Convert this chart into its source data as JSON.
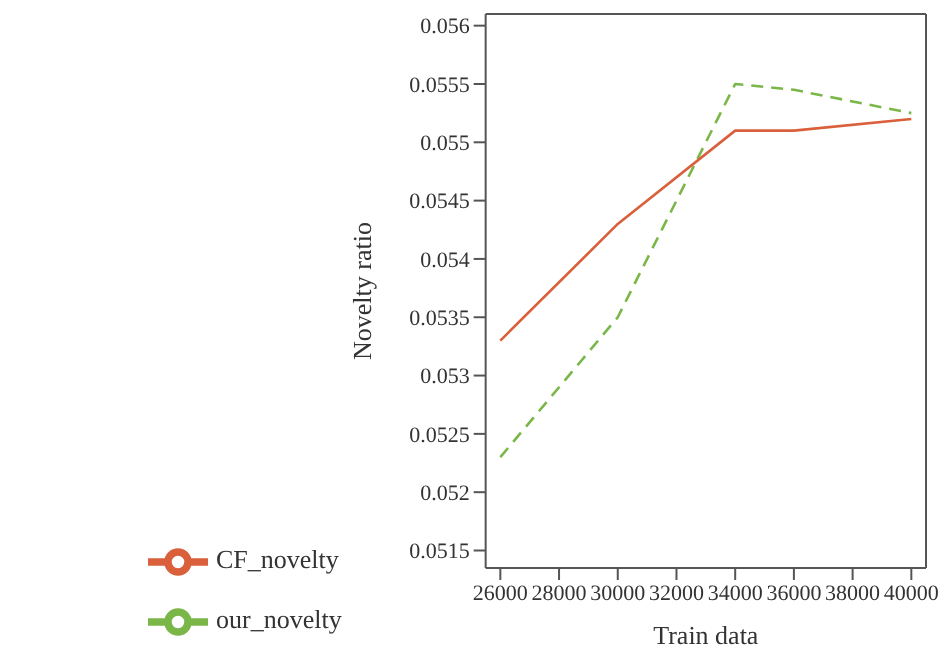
{
  "chart_data": {
    "type": "line",
    "xlabel": "Train data",
    "ylabel": "Novelty ratio",
    "x": [
      26000,
      30000,
      34000,
      36000,
      40000
    ],
    "series": [
      {
        "name": "our_novelty",
        "color": "#7ab648",
        "line_style": "dashed",
        "values": [
          0.0523,
          0.0535,
          0.0555,
          0.05545,
          0.05525
        ]
      },
      {
        "name": "CF_novelty",
        "color": "#d9603b",
        "line_style": "solid",
        "values": [
          0.0533,
          0.0543,
          0.0551,
          0.0551,
          0.0552
        ]
      }
    ],
    "xlim": [
      25500,
      40500
    ],
    "xticks": [
      26000,
      28000,
      30000,
      32000,
      34000,
      36000,
      38000,
      40000
    ],
    "ylim": [
      0.05135,
      0.0561
    ],
    "yticks": [
      0.0515,
      0.052,
      0.0525,
      0.053,
      0.0535,
      0.054,
      0.0545,
      0.055,
      0.0555,
      0.056
    ],
    "grid": false,
    "legend": "bottom",
    "marker": "none"
  }
}
